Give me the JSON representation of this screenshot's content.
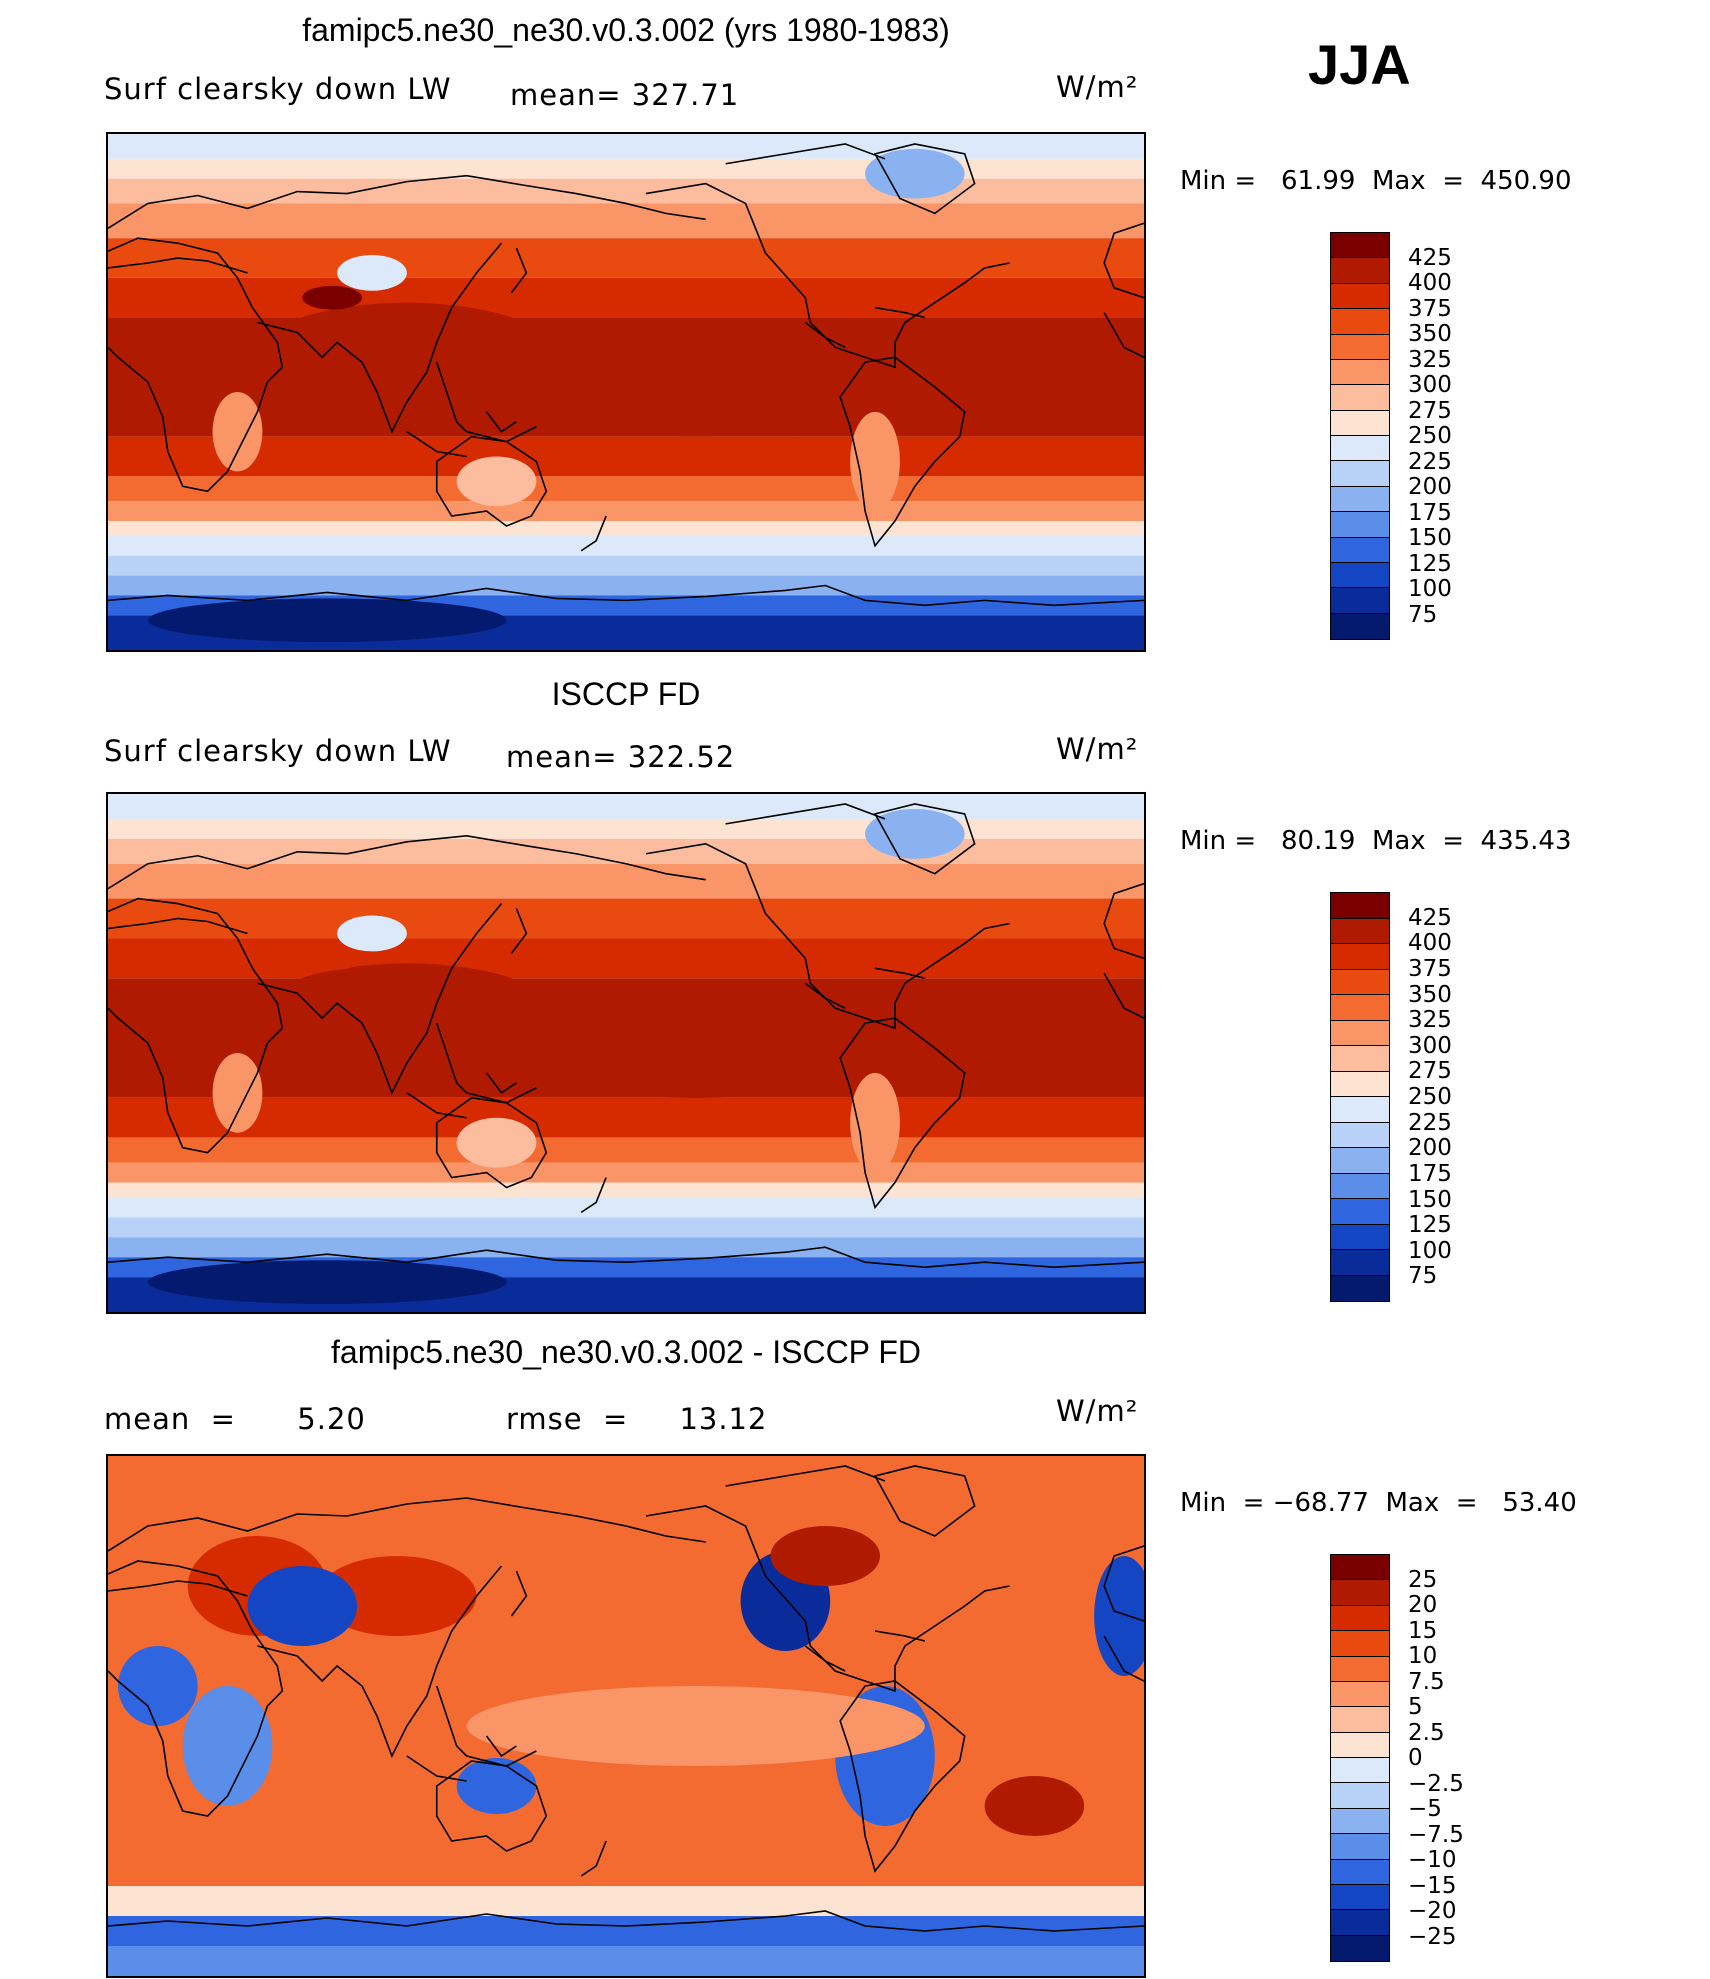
{
  "season": "JJA",
  "units_label": "W/m²",
  "panels": [
    {
      "title": "famipc5.ne30_ne30.v0.3.002 (yrs 1980-1983)",
      "left_label": "Surf clearsky down LW",
      "stats_label": "mean= 327.71",
      "minmax": "Min =   61.99  Max  =  450.90",
      "field": "model"
    },
    {
      "title": "ISCCP FD",
      "left_label": "Surf clearsky down LW",
      "stats_label": "mean= 322.52",
      "minmax": "Min =   80.19  Max  =  435.43",
      "field": "obs"
    },
    {
      "title": "famipc5.ne30_ne30.v0.3.002 - ISCCP FD",
      "left_label": "mean  =      5.20",
      "stats_label": "rmse  =     13.12",
      "minmax": "Min  = −68.77  Max  =   53.40",
      "field": "diff"
    }
  ],
  "colorbars": {
    "absolute": {
      "labels": [
        "425",
        "400",
        "375",
        "350",
        "325",
        "300",
        "275",
        "250",
        "225",
        "200",
        "175",
        "150",
        "125",
        "100",
        "75"
      ],
      "colors": [
        "#7a0000",
        "#b01a00",
        "#d62b00",
        "#e84a0f",
        "#f46b32",
        "#f99567",
        "#fcbd9f",
        "#fde3d1",
        "#dbe9fa",
        "#b8d1f7",
        "#8ab2f0",
        "#5a8ee8",
        "#2f65de",
        "#1446c4",
        "#0a2c9a",
        "#031a6e"
      ]
    },
    "difference": {
      "labels": [
        "25",
        "20",
        "15",
        "10",
        "7.5",
        "5",
        "2.5",
        "0",
        "−2.5",
        "−5",
        "−7.5",
        "−10",
        "−15",
        "−20",
        "−25"
      ],
      "colors": [
        "#7a0000",
        "#b01a00",
        "#d62b00",
        "#e84a0f",
        "#f46b32",
        "#f99567",
        "#fcbd9f",
        "#fde3d1",
        "#dbe9fa",
        "#b8d1f7",
        "#8ab2f0",
        "#5a8ee8",
        "#2f65de",
        "#1446c4",
        "#0a2c9a",
        "#031a6e"
      ]
    }
  }
}
